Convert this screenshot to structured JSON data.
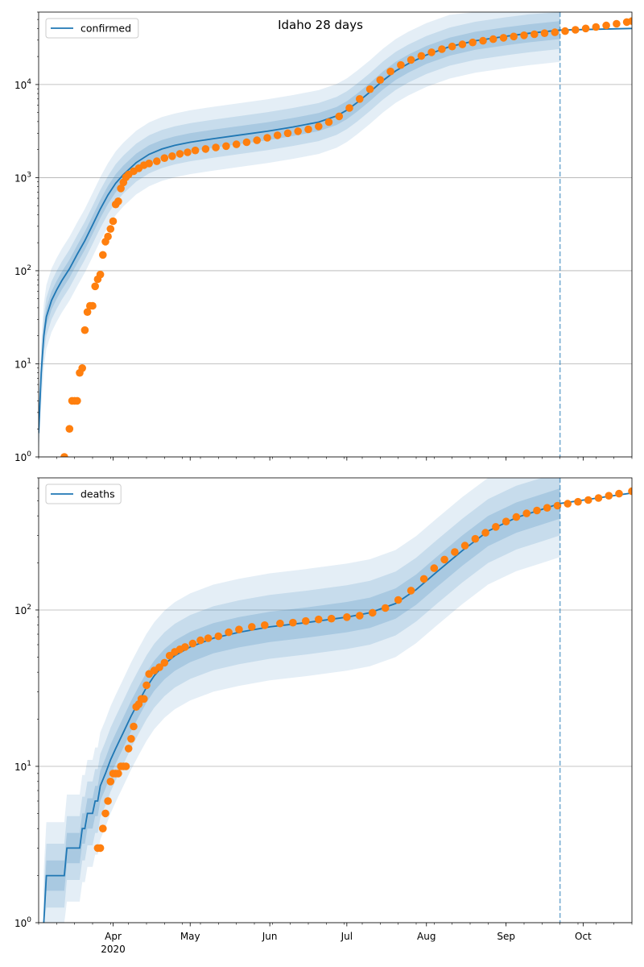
{
  "figure": {
    "title": "Idaho 28 days"
  },
  "colors": {
    "model": "#1f77b4",
    "observed": "#ff7f0e",
    "band": "#1f77b4",
    "grid": "#b0b0b0",
    "axis": "#000000"
  },
  "chart_data": [
    {
      "type": "line",
      "subplot": "top",
      "title": "Idaho 28 days",
      "legend": {
        "label": "confirmed",
        "placement": "top-left"
      },
      "yscale": "log",
      "ylim": [
        1,
        60000
      ],
      "ytick_values": [
        1,
        10,
        100,
        1000,
        10000
      ],
      "ytick_exponents": [
        "0",
        "1",
        "2",
        "3",
        "4"
      ],
      "ytick_base": "10",
      "xlim": [
        "2020-03-03",
        "2020-10-20"
      ],
      "grid": "horizontal",
      "forecast_start": "2020-09-22",
      "model_line": {
        "name": "confirmed",
        "points": [
          [
            "2020-03-03",
            1.8
          ],
          [
            "2020-03-04",
            8
          ],
          [
            "2020-03-05",
            20
          ],
          [
            "2020-03-06",
            32
          ],
          [
            "2020-03-08",
            48
          ],
          [
            "2020-03-10",
            62
          ],
          [
            "2020-03-12",
            78
          ],
          [
            "2020-03-15",
            105
          ],
          [
            "2020-03-18",
            150
          ],
          [
            "2020-03-21",
            210
          ],
          [
            "2020-03-24",
            310
          ],
          [
            "2020-03-27",
            460
          ],
          [
            "2020-03-30",
            650
          ],
          [
            "2020-04-02",
            870
          ],
          [
            "2020-04-05",
            1080
          ],
          [
            "2020-04-10",
            1450
          ],
          [
            "2020-04-15",
            1780
          ],
          [
            "2020-04-20",
            2030
          ],
          [
            "2020-04-25",
            2220
          ],
          [
            "2020-05-01",
            2400
          ],
          [
            "2020-05-10",
            2620
          ],
          [
            "2020-05-20",
            2860
          ],
          [
            "2020-05-31",
            3150
          ],
          [
            "2020-06-10",
            3500
          ],
          [
            "2020-06-20",
            3950
          ],
          [
            "2020-06-27",
            4600
          ],
          [
            "2020-07-01",
            5300
          ],
          [
            "2020-07-05",
            6400
          ],
          [
            "2020-07-10",
            8300
          ],
          [
            "2020-07-15",
            11000
          ],
          [
            "2020-07-20",
            14000
          ],
          [
            "2020-07-25",
            16800
          ],
          [
            "2020-08-01",
            20800
          ],
          [
            "2020-08-10",
            25500
          ],
          [
            "2020-08-20",
            29500
          ],
          [
            "2020-09-01",
            33000
          ],
          [
            "2020-09-10",
            35500
          ],
          [
            "2020-09-22",
            38500
          ],
          [
            "2020-10-20",
            40000
          ]
        ]
      },
      "observed": {
        "points": [
          [
            "2020-03-13",
            1
          ],
          [
            "2020-03-15",
            2
          ],
          [
            "2020-03-16",
            4
          ],
          [
            "2020-03-17",
            4
          ],
          [
            "2020-03-18",
            4
          ],
          [
            "2020-03-19",
            8
          ],
          [
            "2020-03-20",
            9
          ],
          [
            "2020-03-21",
            23
          ],
          [
            "2020-03-22",
            36
          ],
          [
            "2020-03-23",
            42
          ],
          [
            "2020-03-24",
            42
          ],
          [
            "2020-03-25",
            68
          ],
          [
            "2020-03-26",
            81
          ],
          [
            "2020-03-27",
            91
          ],
          [
            "2020-03-28",
            148
          ],
          [
            "2020-03-29",
            205
          ],
          [
            "2020-03-30",
            233
          ],
          [
            "2020-03-31",
            281
          ],
          [
            "2020-04-01",
            340
          ],
          [
            "2020-04-02",
            515
          ],
          [
            "2020-04-03",
            557
          ],
          [
            "2020-04-04",
            766
          ],
          [
            "2020-04-05",
            890
          ],
          [
            "2020-04-06",
            1013
          ],
          [
            "2020-04-07",
            1080
          ],
          [
            "2020-04-09",
            1170
          ],
          [
            "2020-04-11",
            1260
          ],
          [
            "2020-04-13",
            1360
          ],
          [
            "2020-04-15",
            1420
          ],
          [
            "2020-04-18",
            1500
          ],
          [
            "2020-04-21",
            1620
          ],
          [
            "2020-04-24",
            1700
          ],
          [
            "2020-04-27",
            1800
          ],
          [
            "2020-04-30",
            1870
          ],
          [
            "2020-05-03",
            1960
          ],
          [
            "2020-05-07",
            2030
          ],
          [
            "2020-05-11",
            2110
          ],
          [
            "2020-05-15",
            2180
          ],
          [
            "2020-05-19",
            2280
          ],
          [
            "2020-05-23",
            2400
          ],
          [
            "2020-05-27",
            2520
          ],
          [
            "2020-05-31",
            2680
          ],
          [
            "2020-06-04",
            2850
          ],
          [
            "2020-06-08",
            3000
          ],
          [
            "2020-06-12",
            3150
          ],
          [
            "2020-06-16",
            3300
          ],
          [
            "2020-06-20",
            3550
          ],
          [
            "2020-06-24",
            3950
          ],
          [
            "2020-06-28",
            4550
          ],
          [
            "2020-07-02",
            5600
          ],
          [
            "2020-07-06",
            7000
          ],
          [
            "2020-07-10",
            8900
          ],
          [
            "2020-07-14",
            11200
          ],
          [
            "2020-07-18",
            13800
          ],
          [
            "2020-07-22",
            16200
          ],
          [
            "2020-07-26",
            18400
          ],
          [
            "2020-07-30",
            20300
          ],
          [
            "2020-08-03",
            22200
          ],
          [
            "2020-08-07",
            24000
          ],
          [
            "2020-08-11",
            25600
          ],
          [
            "2020-08-15",
            27000
          ],
          [
            "2020-08-19",
            28300
          ],
          [
            "2020-08-23",
            29500
          ],
          [
            "2020-08-27",
            30700
          ],
          [
            "2020-08-31",
            31800
          ],
          [
            "2020-09-04",
            32800
          ],
          [
            "2020-09-08",
            33800
          ],
          [
            "2020-09-12",
            34700
          ],
          [
            "2020-09-16",
            35600
          ],
          [
            "2020-09-20",
            36400
          ],
          [
            "2020-09-24",
            37500
          ],
          [
            "2020-09-28",
            38700
          ],
          [
            "2020-10-02",
            40000
          ],
          [
            "2020-10-06",
            41500
          ],
          [
            "2020-10-10",
            43100
          ],
          [
            "2020-10-14",
            44900
          ],
          [
            "2020-10-18",
            46900
          ],
          [
            "2020-10-20",
            48000
          ]
        ]
      },
      "band_factors": {
        "inner": 1.25,
        "middle": 1.6,
        "outer": 2.2
      }
    },
    {
      "type": "line",
      "subplot": "bottom",
      "legend": {
        "label": "deaths",
        "placement": "top-left"
      },
      "yscale": "log",
      "ylim": [
        1,
        700
      ],
      "ytick_values": [
        1,
        10,
        100
      ],
      "ytick_exponents": [
        "0",
        "1",
        "2"
      ],
      "ytick_base": "10",
      "xlim": [
        "2020-03-03",
        "2020-10-20"
      ],
      "xticks": [
        {
          "date": "2020-04-01",
          "label": "Apr",
          "sublabel": "2020"
        },
        {
          "date": "2020-05-01",
          "label": "May"
        },
        {
          "date": "2020-06-01",
          "label": "Jun"
        },
        {
          "date": "2020-07-01",
          "label": "Jul"
        },
        {
          "date": "2020-08-01",
          "label": "Aug"
        },
        {
          "date": "2020-09-01",
          "label": "Sep"
        },
        {
          "date": "2020-10-01",
          "label": "Oct"
        }
      ],
      "grid": "horizontal",
      "forecast_start": "2020-09-22",
      "model_line": {
        "name": "deaths",
        "points": [
          [
            "2020-03-05",
            1
          ],
          [
            "2020-03-06",
            2
          ],
          [
            "2020-03-13",
            2
          ],
          [
            "2020-03-14",
            3
          ],
          [
            "2020-03-19",
            3
          ],
          [
            "2020-03-20",
            4
          ],
          [
            "2020-03-21",
            4
          ],
          [
            "2020-03-22",
            5
          ],
          [
            "2020-03-24",
            5
          ],
          [
            "2020-03-25",
            6
          ],
          [
            "2020-03-26",
            6
          ],
          [
            "2020-03-27",
            7.5
          ],
          [
            "2020-03-29",
            9
          ],
          [
            "2020-03-31",
            11
          ],
          [
            "2020-04-02",
            13
          ],
          [
            "2020-04-05",
            16.5
          ],
          [
            "2020-04-08",
            21
          ],
          [
            "2020-04-11",
            26
          ],
          [
            "2020-04-14",
            32
          ],
          [
            "2020-04-17",
            38
          ],
          [
            "2020-04-21",
            45
          ],
          [
            "2020-04-25",
            51
          ],
          [
            "2020-05-01",
            58
          ],
          [
            "2020-05-10",
            66
          ],
          [
            "2020-05-20",
            72
          ],
          [
            "2020-06-01",
            78
          ],
          [
            "2020-06-15",
            83
          ],
          [
            "2020-07-01",
            90
          ],
          [
            "2020-07-10",
            96
          ],
          [
            "2020-07-20",
            110
          ],
          [
            "2020-07-28",
            135
          ],
          [
            "2020-08-05",
            175
          ],
          [
            "2020-08-15",
            240
          ],
          [
            "2020-08-25",
            320
          ],
          [
            "2020-09-05",
            390
          ],
          [
            "2020-09-15",
            440
          ],
          [
            "2020-09-22",
            480
          ],
          [
            "2020-10-20",
            560
          ]
        ]
      },
      "observed": {
        "points": [
          [
            "2020-03-26",
            3
          ],
          [
            "2020-03-27",
            3
          ],
          [
            "2020-03-28",
            4
          ],
          [
            "2020-03-29",
            5
          ],
          [
            "2020-03-30",
            6
          ],
          [
            "2020-03-31",
            8
          ],
          [
            "2020-04-01",
            9
          ],
          [
            "2020-04-02",
            9
          ],
          [
            "2020-04-03",
            9
          ],
          [
            "2020-04-04",
            10
          ],
          [
            "2020-04-05",
            10
          ],
          [
            "2020-04-06",
            10
          ],
          [
            "2020-04-07",
            13
          ],
          [
            "2020-04-08",
            15
          ],
          [
            "2020-04-09",
            18
          ],
          [
            "2020-04-10",
            24
          ],
          [
            "2020-04-11",
            25
          ],
          [
            "2020-04-12",
            27
          ],
          [
            "2020-04-13",
            27
          ],
          [
            "2020-04-14",
            33
          ],
          [
            "2020-04-15",
            39
          ],
          [
            "2020-04-17",
            41
          ],
          [
            "2020-04-19",
            43
          ],
          [
            "2020-04-21",
            46
          ],
          [
            "2020-04-23",
            51
          ],
          [
            "2020-04-25",
            54
          ],
          [
            "2020-04-27",
            56
          ],
          [
            "2020-04-29",
            58
          ],
          [
            "2020-05-02",
            61
          ],
          [
            "2020-05-05",
            64
          ],
          [
            "2020-05-08",
            66
          ],
          [
            "2020-05-12",
            68
          ],
          [
            "2020-05-16",
            72
          ],
          [
            "2020-05-20",
            75
          ],
          [
            "2020-05-25",
            78
          ],
          [
            "2020-05-30",
            80
          ],
          [
            "2020-06-05",
            82
          ],
          [
            "2020-06-10",
            83
          ],
          [
            "2020-06-15",
            85
          ],
          [
            "2020-06-20",
            87
          ],
          [
            "2020-06-25",
            88
          ],
          [
            "2020-07-01",
            90
          ],
          [
            "2020-07-06",
            92
          ],
          [
            "2020-07-11",
            96
          ],
          [
            "2020-07-16",
            103
          ],
          [
            "2020-07-21",
            116
          ],
          [
            "2020-07-26",
            133
          ],
          [
            "2020-07-31",
            158
          ],
          [
            "2020-08-04",
            185
          ],
          [
            "2020-08-08",
            210
          ],
          [
            "2020-08-12",
            235
          ],
          [
            "2020-08-16",
            258
          ],
          [
            "2020-08-20",
            285
          ],
          [
            "2020-08-24",
            312
          ],
          [
            "2020-08-28",
            340
          ],
          [
            "2020-09-01",
            368
          ],
          [
            "2020-09-05",
            393
          ],
          [
            "2020-09-09",
            415
          ],
          [
            "2020-09-13",
            433
          ],
          [
            "2020-09-17",
            450
          ],
          [
            "2020-09-21",
            465
          ],
          [
            "2020-09-25",
            478
          ],
          [
            "2020-09-29",
            492
          ],
          [
            "2020-10-03",
            505
          ],
          [
            "2020-10-07",
            520
          ],
          [
            "2020-10-11",
            538
          ],
          [
            "2020-10-15",
            555
          ],
          [
            "2020-10-20",
            575
          ]
        ]
      },
      "band_factors": {
        "inner": 1.25,
        "middle": 1.6,
        "outer": 2.2
      }
    }
  ]
}
